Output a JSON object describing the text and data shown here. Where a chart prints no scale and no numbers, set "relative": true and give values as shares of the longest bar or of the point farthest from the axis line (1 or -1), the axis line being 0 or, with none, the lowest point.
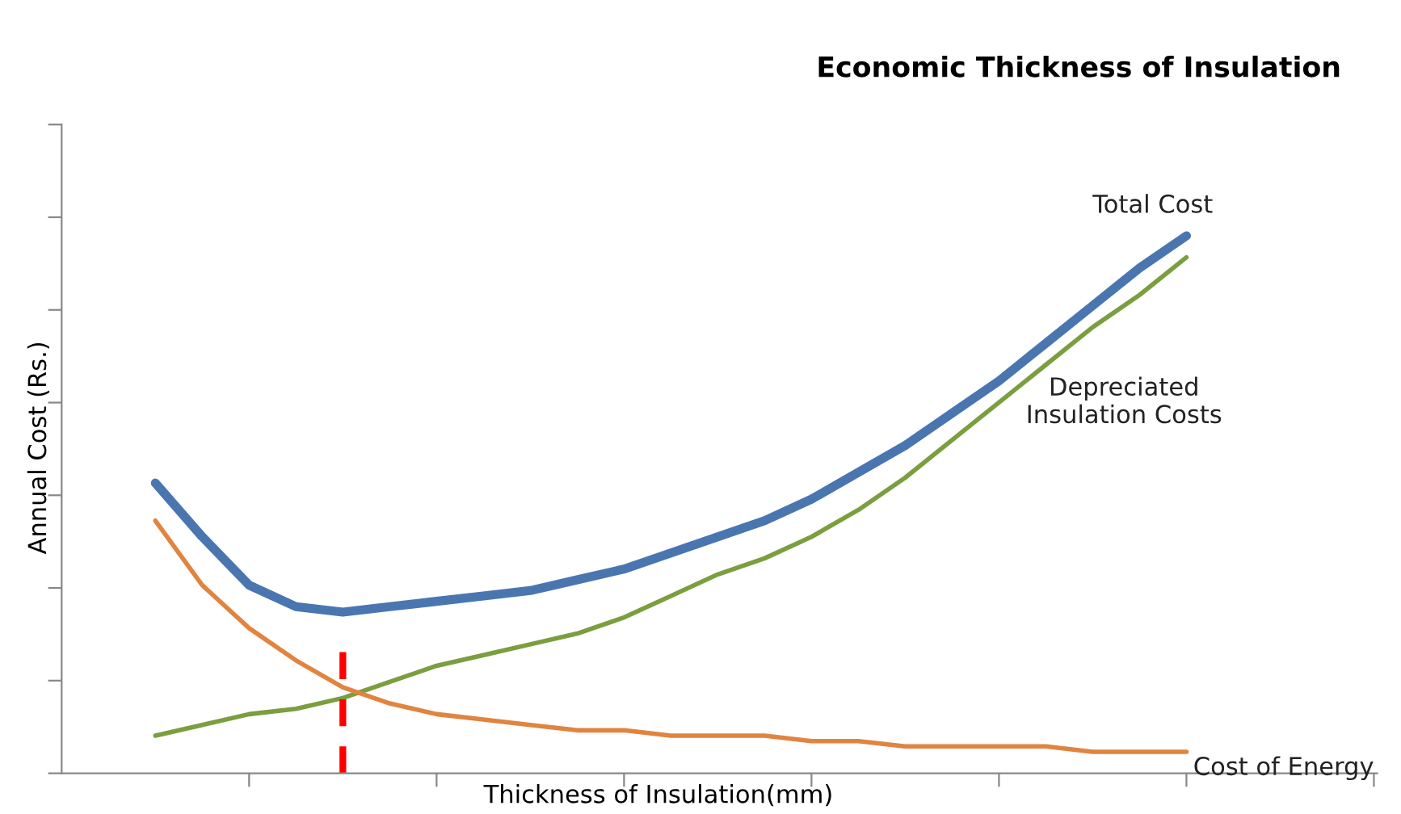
{
  "chart_data": {
    "type": "line",
    "title": "Economic Thickness of Insulation",
    "xlabel": "Thickness of Insulation(mm)",
    "ylabel": "Annual Cost (Rs.)",
    "relative": true,
    "categories": [
      null,
      null,
      null,
      null,
      null,
      null,
      null,
      null,
      null,
      null,
      null,
      null,
      null,
      null,
      null,
      null,
      null,
      null,
      null,
      null,
      null,
      null,
      null
    ],
    "series": [
      {
        "name": "Total Cost",
        "color": "#4a76b0",
        "values": [
          0.54,
          0.44,
          0.35,
          0.31,
          0.3,
          0.31,
          0.32,
          0.33,
          0.34,
          0.36,
          0.38,
          0.41,
          0.44,
          0.47,
          0.51,
          0.56,
          0.61,
          0.67,
          0.73,
          0.8,
          0.87,
          0.94,
          1.0
        ]
      },
      {
        "name": "Depreciated\nInsulation Costs",
        "color": "#7b9e3e",
        "values": [
          0.07,
          0.09,
          0.11,
          0.12,
          0.14,
          0.17,
          0.2,
          0.22,
          0.24,
          0.26,
          0.29,
          0.33,
          0.37,
          0.4,
          0.44,
          0.49,
          0.55,
          0.62,
          0.69,
          0.76,
          0.83,
          0.89,
          0.96
        ]
      },
      {
        "name": "Cost of Energy",
        "color": "#e0843f",
        "values": [
          0.47,
          0.35,
          0.27,
          0.21,
          0.16,
          0.13,
          0.11,
          0.1,
          0.09,
          0.08,
          0.08,
          0.07,
          0.07,
          0.07,
          0.06,
          0.06,
          0.05,
          0.05,
          0.05,
          0.05,
          0.04,
          0.04,
          0.04
        ]
      }
    ],
    "grid": false,
    "legend": false,
    "marker": "none",
    "line_style": "solid"
  }
}
